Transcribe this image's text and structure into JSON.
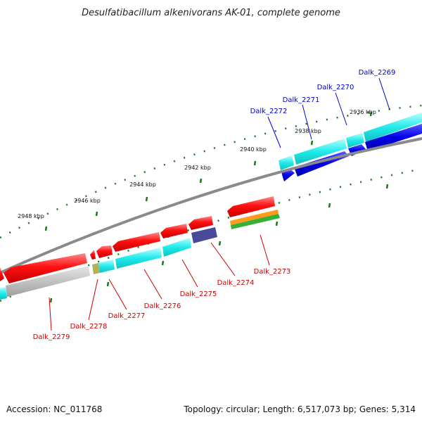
{
  "title": "Desulfatibacillum alkenivorans AK-01, complete genome",
  "footer": {
    "accession": "Accession: NC_011768",
    "summary": "Topology: circular; Length: 6,517,073 bp; Genes: 5,314"
  },
  "tick_labels": [
    "2936 kbp",
    "2938 kbp",
    "2940 kbp",
    "2942 kbp",
    "2944 kbp",
    "2946 kbp",
    "2948 kbp"
  ],
  "genes_top": [
    "Dalk_2269",
    "Dalk_2270",
    "Dalk_2271",
    "Dalk_2272"
  ],
  "genes_bottom": [
    "Dalk_2273",
    "Dalk_2274",
    "Dalk_2275",
    "Dalk_2276",
    "Dalk_2277",
    "Dalk_2278",
    "Dalk_2279"
  ],
  "colors": {
    "forward_cds": "#0000dd",
    "reverse_cds": "#ee1111",
    "forward_label": "#0000cc",
    "reverse_label": "#cc0000",
    "cyan_track": "#22e8e8",
    "backbone": "#888888",
    "tick": "#1a7a1a"
  }
}
